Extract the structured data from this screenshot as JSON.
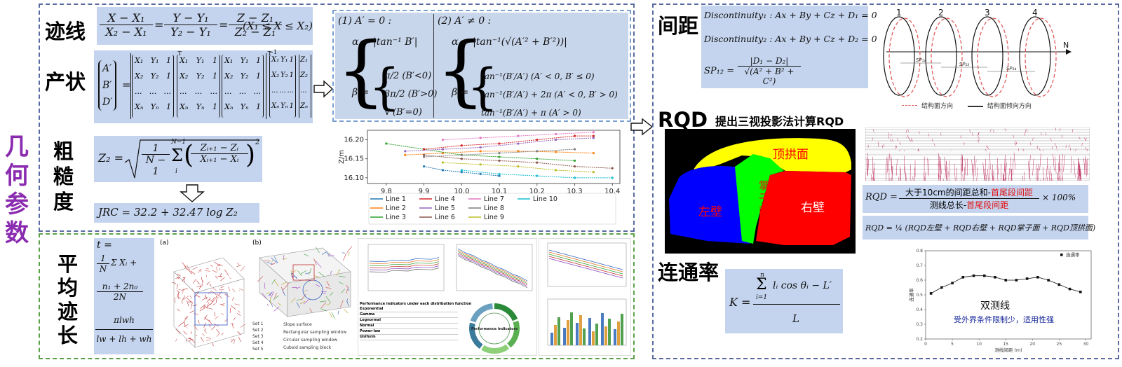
{
  "side_title": [
    "几",
    "何",
    "参",
    "数"
  ],
  "trace": {
    "label": "迹线",
    "f1_num": "X − X₁",
    "f1_den": "X₂ − X₁",
    "f2_num": "Y − Y₁",
    "f2_den": "Y₂ − Y₁",
    "f3_num": "Z − Z₁",
    "f3_den": "Z₂ − Z₁",
    "eq": "=",
    "cond": "(X₁ ≤ X ≤ X₂)"
  },
  "attitude": {
    "label": "产状",
    "lhs": [
      "A′",
      "B′",
      "D′"
    ],
    "m1_rows": [
      [
        "X₁",
        "Y₁",
        "1"
      ],
      [
        "X₂",
        "Y₂",
        "1"
      ],
      [
        "...",
        "...",
        "..."
      ],
      [
        "Xₙ",
        "Yₙ",
        "1"
      ]
    ],
    "rhs_vec": [
      "Z₁",
      "Z₂",
      "...",
      "Zₙ"
    ],
    "t1": "T",
    "inv": "−1",
    "t2": "T"
  },
  "roughness": {
    "label": [
      "粗",
      "糙",
      "度"
    ],
    "z2_lhs": "Z₂ =",
    "frac_1n": "1",
    "frac_1d": "N − 1",
    "sum_top": "N−1",
    "sum_bot": "i",
    "inner_num": "Zᵢ₊₁ − Zᵢ",
    "inner_den": "Xᵢ₊₁ − Xᵢ",
    "sq": "2",
    "jrc": "JRC = 32.2 + 32.47 log Z₂"
  },
  "cases": {
    "c1_head": "(1) A′ = 0 :",
    "c1_alpha": "α = |tan⁻¹ B′|",
    "c1_beta": [
      "π/2 (B′<0)",
      "3π/2 (B′>0)",
      "∀ (B′=0)"
    ],
    "beta": "β =",
    "c2_head": "(2) A′ ≠ 0 :",
    "c2_alpha": "α = |tan⁻¹(√(A′² + B′²))|",
    "c2_beta": [
      "tan⁻¹(B′/A′)  (A′ < 0,  B′ ≤ 0)",
      "tan⁻¹(B′/A′) + 2π  (A′ < 0,  B′ > 0)",
      "tan⁻¹(B′/A′) + π  (A′ > 0)"
    ]
  },
  "chart_data": {
    "type": "line",
    "title": "",
    "xlabel": "",
    "ylabel": "Z/m",
    "xlim": [
      9.75,
      10.42
    ],
    "ylim": [
      16.085,
      16.225
    ],
    "xticks": [
      "9.8",
      "9.9",
      "10.0",
      "10.1",
      "10.2",
      "10.3",
      "10.4"
    ],
    "yticks": [
      "16.10",
      "16.15",
      "16.20"
    ],
    "series": [
      {
        "name": "Line 1",
        "color": "#1f77b4",
        "x": [
          9.9,
          9.95,
          10.0,
          10.05,
          10.1
        ],
        "y": [
          16.13,
          16.12,
          16.115,
          16.11,
          16.105
        ]
      },
      {
        "name": "Line 2",
        "color": "#ff7f0e",
        "x": [
          9.85,
          9.95,
          10.05,
          10.15,
          10.25,
          10.35
        ],
        "y": [
          16.16,
          16.165,
          16.17,
          16.17,
          16.168,
          16.165
        ]
      },
      {
        "name": "Line 3",
        "color": "#2ca02c",
        "x": [
          9.8,
          9.9,
          10.0,
          10.1,
          10.2,
          10.3
        ],
        "y": [
          16.19,
          16.175,
          16.16,
          16.155,
          16.15,
          16.145
        ]
      },
      {
        "name": "Line 4",
        "color": "#d62728",
        "x": [
          9.9,
          10.0,
          10.1,
          10.2,
          10.3,
          10.35
        ],
        "y": [
          16.175,
          16.185,
          16.19,
          16.2,
          16.21,
          16.21
        ]
      },
      {
        "name": "Line 5",
        "color": "#9467bd",
        "x": [
          9.85,
          9.95,
          10.05,
          10.15,
          10.25,
          10.35
        ],
        "y": [
          16.17,
          16.175,
          16.18,
          16.19,
          16.2,
          16.205
        ]
      },
      {
        "name": "Line 6",
        "color": "#8c564b",
        "x": [
          9.9,
          10.0,
          10.1,
          10.2,
          10.3,
          10.4
        ],
        "y": [
          16.16,
          16.15,
          16.145,
          16.14,
          16.13,
          16.125
        ]
      },
      {
        "name": "Line 7",
        "color": "#e377c2",
        "x": [
          9.95,
          10.05,
          10.15,
          10.25,
          10.35
        ],
        "y": [
          16.2,
          16.205,
          16.21,
          16.215,
          16.22
        ]
      },
      {
        "name": "Line 8",
        "color": "#7f7f7f",
        "x": [
          9.9,
          10.0,
          10.1,
          10.2,
          10.3
        ],
        "y": [
          16.155,
          16.16,
          16.165,
          16.17,
          16.175
        ]
      },
      {
        "name": "Line 9",
        "color": "#bcbd22",
        "x": [
          9.95,
          10.05,
          10.15,
          10.25,
          10.35
        ],
        "y": [
          16.14,
          16.135,
          16.13,
          16.12,
          16.115
        ]
      },
      {
        "name": "Line 10",
        "color": "#17becf",
        "x": [
          10.0,
          10.1,
          10.2,
          10.3,
          10.4
        ],
        "y": [
          16.12,
          16.11,
          16.105,
          16.1,
          16.1
        ]
      }
    ]
  },
  "spacing": {
    "label": "间距",
    "d1": "Discontinuity₁ : Ax + By + Cz + D₁ = 0",
    "d2": "Discontinuity₂ : Ax + By + Cz + D₂ = 0",
    "sp_lhs": "SP₁₂ =",
    "sp_num": "|D₁ − D₂|",
    "sp_den": "√(A² + B² + C²)",
    "diagram_nums": [
      "1",
      "2",
      "3",
      "4"
    ],
    "axis": "N",
    "sp_labels": [
      "SP₁₂",
      "SP₂₃",
      "SP₃₄"
    ],
    "legend": [
      "结构面方向",
      "结构面倾向方向"
    ]
  },
  "rqd": {
    "label": "RQD",
    "subtitle": "提出三视投影法计算RQD",
    "regions": {
      "top": "顶拱面",
      "left": "左壁",
      "face": "掌子面",
      "right": "右壁"
    },
    "f1_lhs": "RQD =",
    "f1_num_a": "大于10cm的间距总和-",
    "f1_num_b": "首尾段间距",
    "f1_den_a": "测线总长-",
    "f1_den_b": "首尾段间距",
    "f1_pct": "× 100%",
    "f2": "RQD = ¼ (RQD左壁 + RQD右壁 + RQD掌子面 + RQD顶拱面)"
  },
  "connectivity": {
    "label": "连通率",
    "lhs": "K =",
    "sum_top": "n",
    "sum_bot": "i=1",
    "num": "lᵢ cos θᵢ − L′",
    "den": "L",
    "chart_note_title": "双测线",
    "chart_note_sub": "受外界条件限制少，适用性强",
    "legend": "连通率",
    "xlabel": "测线间距 (m)",
    "ylabel": "连通率",
    "x": [
      1,
      3,
      5,
      7,
      9,
      11,
      13,
      15,
      17,
      19,
      21,
      23,
      25,
      27,
      29
    ],
    "y": [
      0.51,
      0.55,
      0.58,
      0.62,
      0.63,
      0.63,
      0.62,
      0.6,
      0.6,
      0.61,
      0.62,
      0.6,
      0.57,
      0.54,
      0.52
    ]
  },
  "mean_trace": {
    "label": [
      "平",
      "均",
      "迹",
      "长"
    ],
    "f_t": "t =",
    "f_frac1_num": "1",
    "f_frac1_den": "N",
    "f_sum": "Σ Xᵢ +",
    "f_frac2_num": "n₁ + 2n₀",
    "f_frac2_den": "2N",
    "f_frac3_num": "πlwh",
    "f_frac3_den": "lw + lh + wh",
    "panel_a": "(a)",
    "panel_b": "(b)",
    "legend_b": [
      "Set 1",
      "Set 2",
      "Set 3",
      "Set 4",
      "Set 5"
    ],
    "legend_b2": [
      "Slope surface",
      "Rectangular sampling window",
      "Circular sampling window",
      "Cuboid sampling block"
    ],
    "table_title": "Performance indicators under each distribution function",
    "table_rows": [
      "Exponential",
      "Gamma",
      "Lognormal",
      "Normal",
      "Power-law",
      "Uniform"
    ],
    "donut_title": "Performance indicators"
  }
}
